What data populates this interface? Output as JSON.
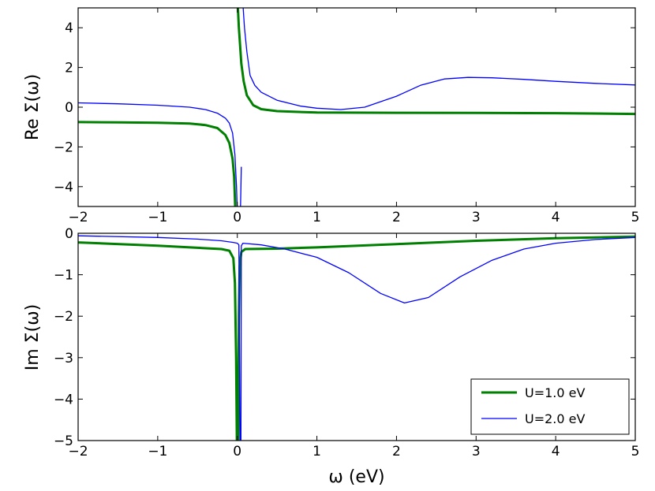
{
  "chart_data": [
    {
      "type": "line",
      "ylabel": "Re Σ(ω)",
      "xlim": [
        -2,
        5
      ],
      "ylim": [
        -5,
        5
      ],
      "x_ticks": [
        -2,
        -1,
        0,
        1,
        2,
        3,
        4,
        5
      ],
      "x_tick_labels": [
        "−2",
        "−1",
        "0",
        "1",
        "2",
        "3",
        "4",
        "5"
      ],
      "y_ticks": [
        -4,
        -2,
        0,
        2,
        4
      ],
      "y_tick_labels": [
        "−4",
        "−2",
        "0",
        "2",
        "4"
      ],
      "series": [
        {
          "name": "U=1.0 eV",
          "color": "#008000",
          "points": [
            [
              -2,
              -0.75
            ],
            [
              -1.5,
              -0.76
            ],
            [
              -1,
              -0.78
            ],
            [
              -0.6,
              -0.82
            ],
            [
              -0.4,
              -0.9
            ],
            [
              -0.25,
              -1.05
            ],
            [
              -0.15,
              -1.4
            ],
            [
              -0.1,
              -1.8
            ],
            [
              -0.06,
              -2.6
            ],
            [
              -0.04,
              -3.5
            ],
            [
              -0.025,
              -5.2
            ],
            [
              null,
              null
            ],
            [
              0.005,
              5.2
            ],
            [
              0.02,
              4
            ],
            [
              0.05,
              2.2
            ],
            [
              0.08,
              1.3
            ],
            [
              0.12,
              0.6
            ],
            [
              0.2,
              0.1
            ],
            [
              0.3,
              -0.1
            ],
            [
              0.5,
              -0.2
            ],
            [
              1,
              -0.27
            ],
            [
              2,
              -0.28
            ],
            [
              3,
              -0.29
            ],
            [
              4,
              -0.3
            ],
            [
              5,
              -0.34
            ]
          ]
        },
        {
          "name": "U=2.0 eV",
          "color": "#0000ff",
          "points": [
            [
              -2,
              0.22
            ],
            [
              -1.5,
              0.17
            ],
            [
              -1,
              0.1
            ],
            [
              -0.6,
              0
            ],
            [
              -0.4,
              -0.12
            ],
            [
              -0.25,
              -0.3
            ],
            [
              -0.15,
              -0.55
            ],
            [
              -0.1,
              -0.8
            ],
            [
              -0.06,
              -1.3
            ],
            [
              -0.03,
              -2.4
            ],
            [
              -0.01,
              -4
            ],
            [
              0,
              -5.2
            ],
            [
              null,
              null
            ],
            [
              0.04,
              -5.2
            ],
            [
              0.05,
              -3
            ],
            [
              null,
              null
            ],
            [
              0.07,
              5.2
            ],
            [
              0.09,
              4
            ],
            [
              0.12,
              2.8
            ],
            [
              0.16,
              1.6
            ],
            [
              0.22,
              1.1
            ],
            [
              0.3,
              0.75
            ],
            [
              0.5,
              0.35
            ],
            [
              0.8,
              0.05
            ],
            [
              1,
              -0.05
            ],
            [
              1.3,
              -0.12
            ],
            [
              1.6,
              0
            ],
            [
              2,
              0.55
            ],
            [
              2.3,
              1.1
            ],
            [
              2.6,
              1.42
            ],
            [
              2.9,
              1.5
            ],
            [
              3.2,
              1.48
            ],
            [
              3.6,
              1.4
            ],
            [
              4,
              1.3
            ],
            [
              4.5,
              1.2
            ],
            [
              5,
              1.12
            ]
          ]
        }
      ]
    },
    {
      "type": "line",
      "ylabel": "Im Σ(ω)",
      "xlabel": "ω (eV)",
      "xlim": [
        -2,
        5
      ],
      "ylim": [
        -5,
        0
      ],
      "x_ticks": [
        -2,
        -1,
        0,
        1,
        2,
        3,
        4,
        5
      ],
      "x_tick_labels": [
        "−2",
        "−1",
        "0",
        "1",
        "2",
        "3",
        "4",
        "5"
      ],
      "y_ticks": [
        -5,
        -4,
        -3,
        -2,
        -1,
        0
      ],
      "y_tick_labels": [
        "−5",
        "−4",
        "−3",
        "−2",
        "−1",
        "0"
      ],
      "series": [
        {
          "name": "U=1.0 eV",
          "color": "#008000",
          "points": [
            [
              -2,
              -0.22
            ],
            [
              -1,
              -0.3
            ],
            [
              -0.5,
              -0.35
            ],
            [
              -0.2,
              -0.38
            ],
            [
              -0.1,
              -0.42
            ],
            [
              -0.05,
              -0.6
            ],
            [
              -0.03,
              -1.2
            ],
            [
              -0.015,
              -3
            ],
            [
              -0.005,
              -5.1
            ],
            [
              null,
              null
            ],
            [
              0.01,
              -5.1
            ],
            [
              0.02,
              -2
            ],
            [
              0.03,
              -0.8
            ],
            [
              0.05,
              -0.45
            ],
            [
              0.1,
              -0.38
            ],
            [
              0.5,
              -0.37
            ],
            [
              1,
              -0.34
            ],
            [
              2,
              -0.26
            ],
            [
              3,
              -0.18
            ],
            [
              4,
              -0.12
            ],
            [
              5,
              -0.08
            ]
          ]
        },
        {
          "name": "U=2.0 eV",
          "color": "#0000ff",
          "points": [
            [
              -2,
              -0.06
            ],
            [
              -1,
              -0.1
            ],
            [
              -0.5,
              -0.14
            ],
            [
              -0.2,
              -0.18
            ],
            [
              -0.05,
              -0.22
            ],
            [
              0,
              -0.24
            ],
            [
              0.02,
              -0.28
            ],
            [
              0.035,
              -5.1
            ],
            [
              null,
              null
            ],
            [
              0.045,
              -5.1
            ],
            [
              0.05,
              -0.3
            ],
            [
              0.07,
              -0.24
            ],
            [
              0.3,
              -0.28
            ],
            [
              0.6,
              -0.38
            ],
            [
              1,
              -0.58
            ],
            [
              1.4,
              -0.95
            ],
            [
              1.8,
              -1.45
            ],
            [
              2.1,
              -1.68
            ],
            [
              2.4,
              -1.55
            ],
            [
              2.8,
              -1.05
            ],
            [
              3.2,
              -0.65
            ],
            [
              3.6,
              -0.38
            ],
            [
              4,
              -0.24
            ],
            [
              4.5,
              -0.15
            ],
            [
              5,
              -0.1
            ]
          ]
        }
      ],
      "legend": {
        "position": "lower-right",
        "entries": [
          "U=1.0 eV",
          "U=2.0 eV"
        ]
      }
    }
  ]
}
